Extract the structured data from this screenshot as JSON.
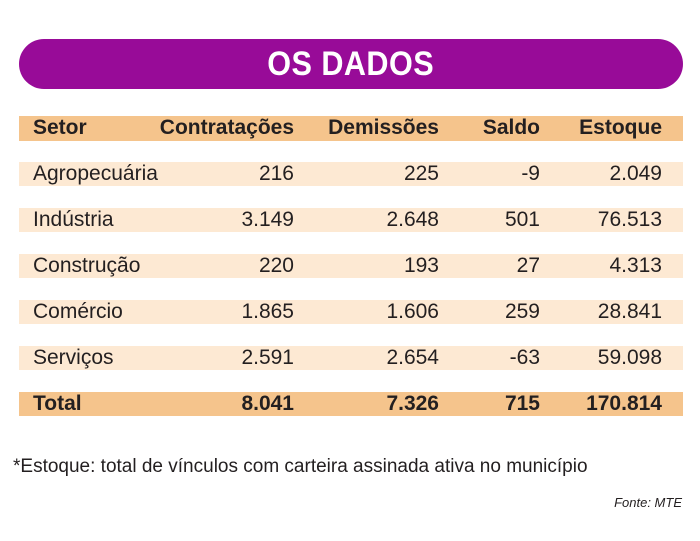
{
  "title": "OS DADOS",
  "table": {
    "headers": [
      "Setor",
      "Contratações",
      "Demissões",
      "Saldo",
      "Estoque"
    ],
    "rows": [
      [
        "Agropecuária",
        "216",
        "225",
        "-9",
        "2.049"
      ],
      [
        "Indústria",
        "3.149",
        "2.648",
        "501",
        "76.513"
      ],
      [
        "Construção",
        "220",
        "193",
        "27",
        "4.313"
      ],
      [
        "Comércio",
        "1.865",
        "1.606",
        "259",
        "28.841"
      ],
      [
        "Serviços",
        "2.591",
        "2.654",
        "-63",
        "59.098"
      ]
    ],
    "total": [
      "Total",
      "8.041",
      "7.326",
      "715",
      "170.814"
    ]
  },
  "footnote": "*Estoque: total de vínculos com carteira assinada ativa no município",
  "source": "Fonte: MTE",
  "colors": {
    "banner": "#980b98",
    "header_row": "#f5c48c",
    "data_row": "#fde9d3"
  }
}
